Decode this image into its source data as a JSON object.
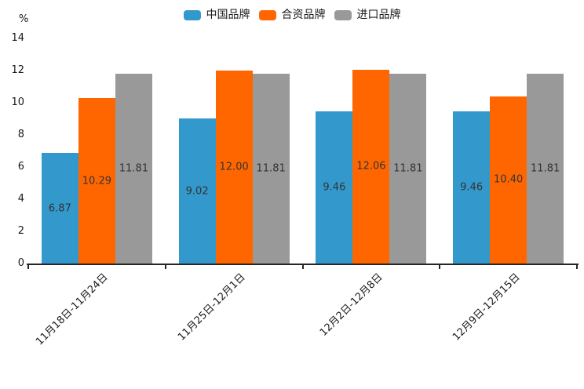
{
  "chart_data": {
    "type": "bar",
    "title": "",
    "y_unit": "%",
    "ylim": [
      0,
      14
    ],
    "yticks": [
      0,
      2,
      4,
      6,
      8,
      10,
      12,
      14
    ],
    "grid": false,
    "legend_position": "top",
    "categories": [
      "11月18日-11月24日",
      "11月25日-12月1日",
      "12月2日-12月8日",
      "12月9日-12月15日"
    ],
    "series": [
      {
        "name": "中国品牌",
        "color": "#3399CC",
        "values": [
          6.87,
          9.02,
          9.46,
          9.46
        ]
      },
      {
        "name": "合资品牌",
        "color": "#FF6600",
        "values": [
          10.29,
          12.0,
          12.06,
          10.4
        ]
      },
      {
        "name": "进口品牌",
        "color": "#999999",
        "values": [
          11.81,
          11.81,
          11.81,
          11.81
        ]
      }
    ],
    "value_label_decimals": 2,
    "colors": {
      "axis": "#262626",
      "tick_text": "#1a1a1a",
      "value_text": "#333333"
    }
  }
}
